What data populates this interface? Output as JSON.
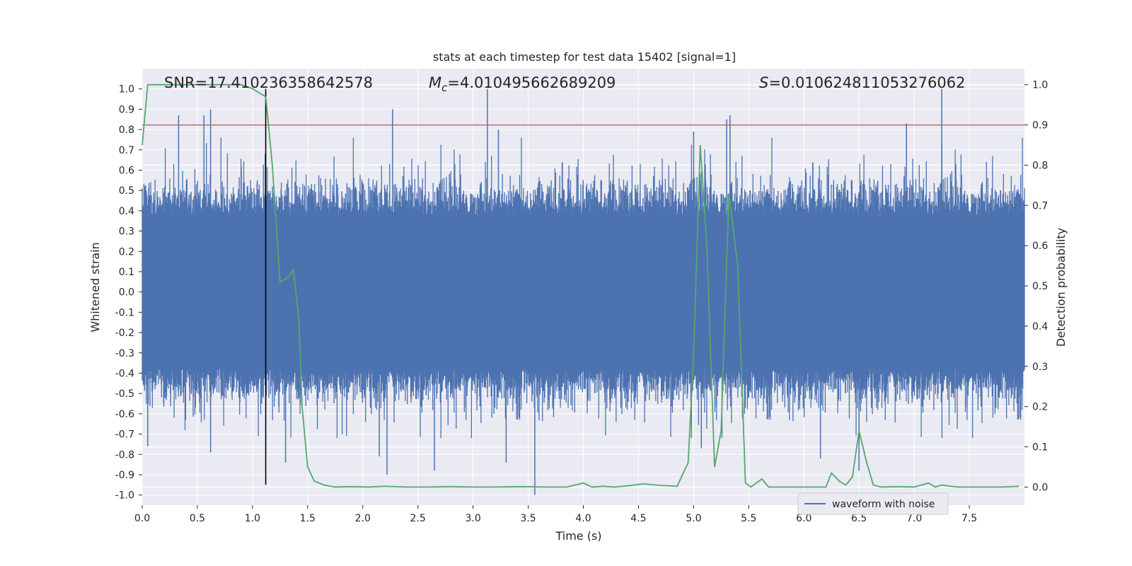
{
  "chart_data": {
    "type": "line",
    "title": "stats at each timestep for test data 15402 [signal=1]",
    "xlabel": "Time (s)",
    "ylabel": "Whitened strain",
    "y2label": "Detection probability",
    "xlim": [
      0.0,
      8.0
    ],
    "ylim": [
      -1.05,
      1.1
    ],
    "y2lim": [
      -0.045,
      1.04
    ],
    "xticks": [
      0.0,
      0.5,
      1.0,
      1.5,
      2.0,
      2.5,
      3.0,
      3.5,
      4.0,
      4.5,
      5.0,
      5.5,
      6.0,
      6.5,
      7.0,
      7.5
    ],
    "yticks": [
      -1.0,
      -0.9,
      -0.8,
      -0.7,
      -0.6,
      -0.5,
      -0.4,
      -0.3,
      -0.2,
      -0.1,
      0.0,
      0.1,
      0.2,
      0.3,
      0.4,
      0.5,
      0.6,
      0.7,
      0.8,
      0.9,
      1.0
    ],
    "y2ticks": [
      0.0,
      0.1,
      0.2,
      0.3,
      0.4,
      0.5,
      0.6,
      0.7,
      0.8,
      0.9,
      1.0
    ],
    "grid": true,
    "legend": {
      "placement": "lower-right",
      "entries": [
        "waveform with noise"
      ]
    },
    "annotations": {
      "snr": "SNR=17.410236358642578",
      "mc_symbol": "M",
      "mc_sub": "c",
      "mc_value": "=4.010495662689209",
      "s_symbol": "S",
      "s_value": "=0.010624811053276062"
    },
    "colors": {
      "waveform": "#4c72b0",
      "probability": "#55a868",
      "threshold": "#c44e52",
      "marker": "#000000",
      "axes_bg": "#eaeaf2",
      "grid": "#ffffff"
    },
    "threshold_y2": 0.9,
    "marker_x": 1.12,
    "series": [
      {
        "name": "waveform with noise",
        "axis": "left",
        "render": "dense-noise",
        "duration": 8.0,
        "core_half_width": 0.37,
        "spikes": [
          {
            "x": 0.33,
            "y": 0.87
          },
          {
            "x": 0.56,
            "y": 0.87
          },
          {
            "x": 0.62,
            "y": 0.9
          },
          {
            "x": 2.27,
            "y": 0.9
          },
          {
            "x": 3.13,
            "y": 1.0
          },
          {
            "x": 3.23,
            "y": 0.8
          },
          {
            "x": 5.0,
            "y": 0.79
          },
          {
            "x": 5.3,
            "y": 0.85
          },
          {
            "x": 5.33,
            "y": 0.87
          },
          {
            "x": 6.93,
            "y": 0.83
          },
          {
            "x": 7.25,
            "y": 1.0
          },
          {
            "x": 0.05,
            "y": -0.76
          },
          {
            "x": 0.62,
            "y": -0.79
          },
          {
            "x": 1.3,
            "y": -0.84
          },
          {
            "x": 2.15,
            "y": -0.81
          },
          {
            "x": 2.22,
            "y": -0.9
          },
          {
            "x": 2.65,
            "y": -0.88
          },
          {
            "x": 3.3,
            "y": -0.84
          },
          {
            "x": 3.56,
            "y": -1.0
          },
          {
            "x": 5.07,
            "y": -0.77
          },
          {
            "x": 6.15,
            "y": -0.82
          },
          {
            "x": 6.5,
            "y": -0.88
          }
        ]
      },
      {
        "name": "",
        "axis": "right",
        "x": [
          0.0,
          0.05,
          0.12,
          0.3,
          0.5,
          0.7,
          0.9,
          1.0,
          1.06,
          1.12,
          1.18,
          1.25,
          1.32,
          1.37,
          1.42,
          1.45,
          1.5,
          1.56,
          1.65,
          1.75,
          1.9,
          2.05,
          2.2,
          2.4,
          2.6,
          2.8,
          3.0,
          3.2,
          3.45,
          3.65,
          3.85,
          4.0,
          4.08,
          4.18,
          4.28,
          4.4,
          4.55,
          4.7,
          4.85,
          4.95,
          5.0,
          5.06,
          5.12,
          5.19,
          5.25,
          5.32,
          5.4,
          5.47,
          5.52,
          5.57,
          5.62,
          5.68,
          5.8,
          6.0,
          6.2,
          6.25,
          6.32,
          6.38,
          6.44,
          6.5,
          6.57,
          6.63,
          6.7,
          6.85,
          7.0,
          7.13,
          7.19,
          7.25,
          7.3,
          7.4,
          7.6,
          7.8,
          7.95
        ],
        "values": [
          0.85,
          1.0,
          1.0,
          1.0,
          1.0,
          1.0,
          1.0,
          0.99,
          0.98,
          0.97,
          0.8,
          0.51,
          0.52,
          0.54,
          0.42,
          0.2,
          0.05,
          0.015,
          0.005,
          0.0,
          0.001,
          0.0,
          0.002,
          0.0,
          0.0,
          0.001,
          0.0,
          0.0,
          0.001,
          0.0,
          0.0,
          0.01,
          0.0,
          0.002,
          0.0,
          0.003,
          0.008,
          0.004,
          0.002,
          0.06,
          0.33,
          0.85,
          0.6,
          0.05,
          0.14,
          0.73,
          0.55,
          0.01,
          0.0,
          0.01,
          0.02,
          0.0,
          0.0,
          0.0,
          0.0,
          0.035,
          0.015,
          0.005,
          0.025,
          0.14,
          0.06,
          0.005,
          0.0,
          0.001,
          0.0,
          0.01,
          0.0,
          0.005,
          0.003,
          0.0,
          0.0,
          0.0,
          0.002
        ]
      }
    ]
  }
}
